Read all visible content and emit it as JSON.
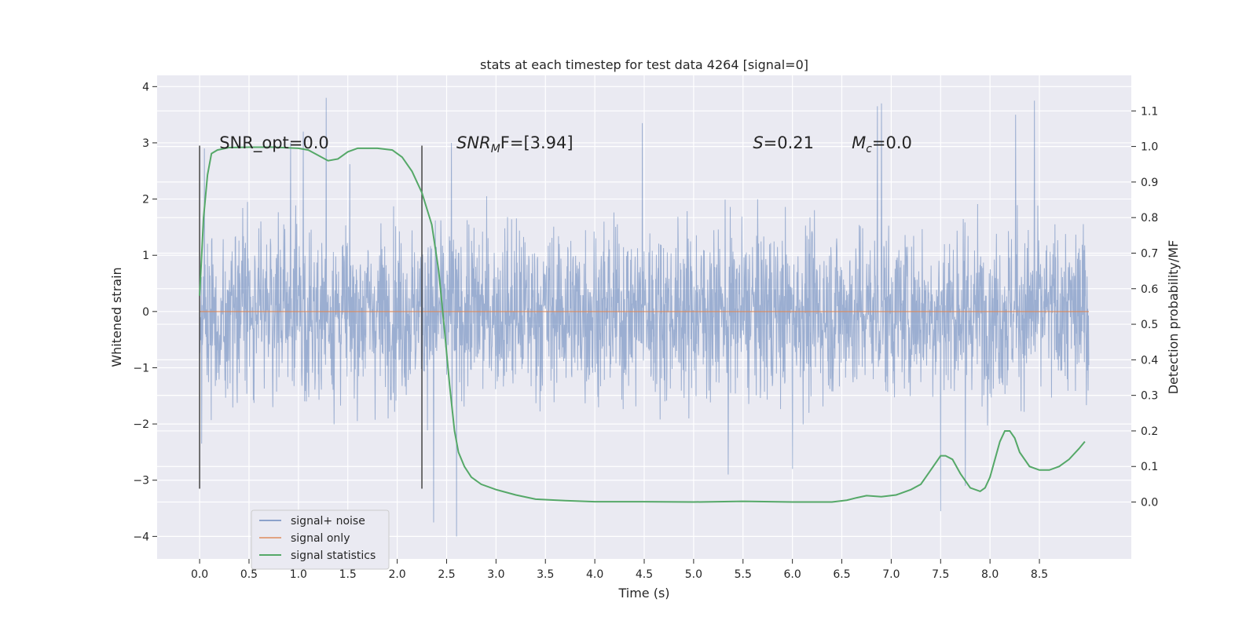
{
  "chart_data": {
    "type": "line",
    "title": "stats at each timestep for test data 4264 [signal=0]",
    "xlabel": "Time (s)",
    "ylabel": "Whitened strain",
    "y2label": "Detection probability/MF",
    "xlim": [
      -0.43,
      9.43
    ],
    "ylim": [
      -4.4,
      4.2
    ],
    "y2lim": [
      -0.16,
      1.2
    ],
    "x_ticks": [
      "0.0",
      "0.5",
      "1.0",
      "1.5",
      "2.0",
      "2.5",
      "3.0",
      "3.5",
      "4.0",
      "4.5",
      "5.0",
      "5.5",
      "6.0",
      "6.5",
      "7.0",
      "7.5",
      "8.0",
      "8.5"
    ],
    "y_ticks": [
      "4",
      "3",
      "2",
      "1",
      "0",
      "−1",
      "−2",
      "−3",
      "−4"
    ],
    "y2_ticks": [
      "1.1",
      "1.0",
      "0.9",
      "0.8",
      "0.7",
      "0.6",
      "0.5",
      "0.4",
      "0.3",
      "0.2",
      "0.1",
      "0.0"
    ],
    "grid": true,
    "legend_position": "lower-left",
    "colors": {
      "plot_background": "#eaeaf2",
      "grid": "#ffffff",
      "noise": "#4c72b0",
      "signal_only": "#dd8452",
      "statistics": "#55a868",
      "marker_line": "#444444"
    },
    "series": [
      {
        "name": "signal+ noise",
        "description_range": "noisy whitened strain sampled over 0.0-9.0 s, mostly within about ±2.5, extremes near 3.8 and -4.0",
        "x_start": 0.0,
        "x_end": 9.0,
        "spikes": [
          [
            0.92,
            3.0
          ],
          [
            1.28,
            3.8
          ],
          [
            1.05,
            3.2
          ],
          [
            2.55,
            3.0
          ],
          [
            2.37,
            -3.75
          ],
          [
            2.6,
            -4.0
          ],
          [
            4.48,
            3.35
          ],
          [
            6.86,
            3.65
          ],
          [
            6.9,
            3.7
          ],
          [
            7.5,
            -3.55
          ],
          [
            8.26,
            3.5
          ],
          [
            8.45,
            3.75
          ],
          [
            5.35,
            -2.9
          ],
          [
            6.0,
            -2.8
          ],
          [
            7.75,
            -3.1
          ],
          [
            0.05,
            2.9
          ],
          [
            0.02,
            -2.35
          ]
        ]
      },
      {
        "name": "signal only",
        "x": [
          0.0,
          9.0
        ],
        "y": [
          0.0,
          0.0
        ]
      },
      {
        "name": "signal statistics",
        "axis": "right",
        "x": [
          0.0,
          0.04,
          0.08,
          0.12,
          0.18,
          0.3,
          0.5,
          0.75,
          1.0,
          1.1,
          1.2,
          1.3,
          1.4,
          1.5,
          1.6,
          1.8,
          1.95,
          2.05,
          2.15,
          2.25,
          2.35,
          2.42,
          2.48,
          2.53,
          2.58,
          2.62,
          2.68,
          2.75,
          2.85,
          3.0,
          3.2,
          3.4,
          3.7,
          4.0,
          4.5,
          5.0,
          5.5,
          6.0,
          6.4,
          6.55,
          6.65,
          6.75,
          6.9,
          7.05,
          7.2,
          7.3,
          7.4,
          7.5,
          7.55,
          7.62,
          7.7,
          7.8,
          7.9,
          7.95,
          8.0,
          8.05,
          8.1,
          8.15,
          8.2,
          8.25,
          8.3,
          8.4,
          8.5,
          8.6,
          8.7,
          8.8,
          8.9,
          8.96
        ],
        "y": [
          0.58,
          0.8,
          0.92,
          0.98,
          0.99,
          0.997,
          0.998,
          0.998,
          0.995,
          0.99,
          0.975,
          0.96,
          0.965,
          0.985,
          0.995,
          0.995,
          0.99,
          0.97,
          0.93,
          0.87,
          0.78,
          0.65,
          0.48,
          0.33,
          0.2,
          0.14,
          0.1,
          0.07,
          0.05,
          0.035,
          0.02,
          0.008,
          0.004,
          0.001,
          0.001,
          0.0,
          0.002,
          0.0,
          0.0,
          0.005,
          0.012,
          0.018,
          0.015,
          0.02,
          0.035,
          0.05,
          0.09,
          0.13,
          0.13,
          0.12,
          0.08,
          0.04,
          0.03,
          0.04,
          0.07,
          0.12,
          0.17,
          0.2,
          0.2,
          0.18,
          0.14,
          0.1,
          0.09,
          0.09,
          0.1,
          0.12,
          0.15,
          0.17
        ]
      }
    ],
    "vertical_lines": [
      {
        "x": 0.0,
        "y_range": [
          -3.15,
          2.95
        ]
      },
      {
        "x": 2.25,
        "y_range": [
          -3.15,
          2.95
        ]
      }
    ],
    "annotations": [
      {
        "text": "SNR_opt=0.0",
        "x": 0.2,
        "y": 3.0
      },
      {
        "main": "SNR",
        "sub": "M",
        "rest": "F=[3.94]",
        "x": 2.6,
        "y": 3.0
      },
      {
        "main": "S",
        "rest": "=0.21",
        "x": 5.6,
        "y": 3.0
      },
      {
        "main": "M",
        "sub": "c",
        "rest": "=0.0",
        "x": 6.6,
        "y": 3.0
      }
    ]
  }
}
